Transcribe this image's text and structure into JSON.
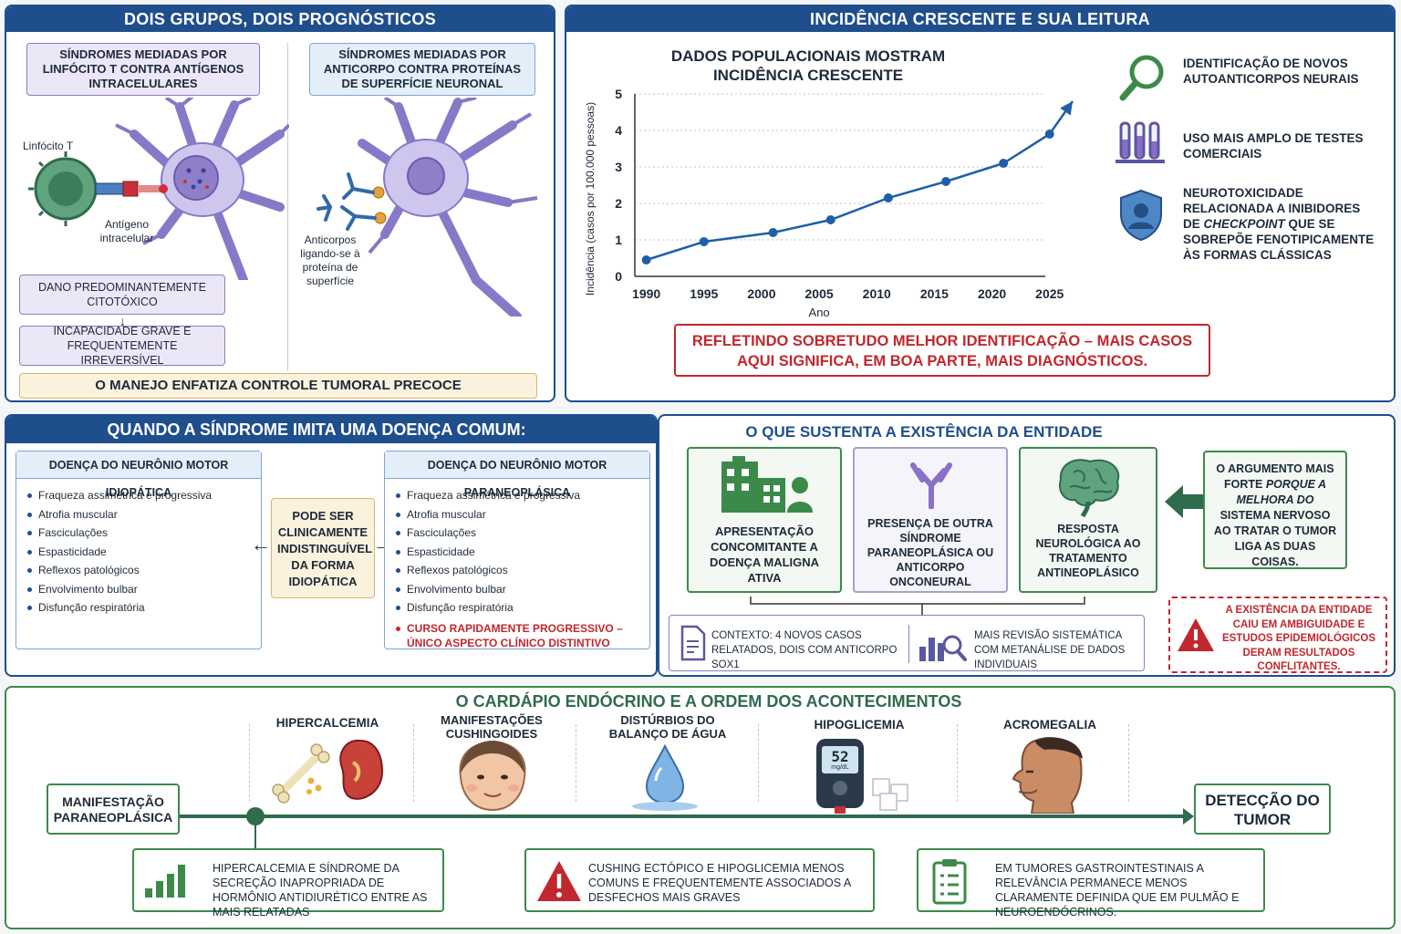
{
  "p1": {
    "title": "DOIS GRUPOS, DOIS PROGNÓSTICOS",
    "t_cell_box": "SÍNDROMES MEDIADAS POR LINFÓCITO T CONTRA ANTÍGENOS INTRACELULARES",
    "antibody_box": "SÍNDROMES MEDIADAS POR ANTICORPO CONTRA PROTEÍNAS DE SUPERFÍCIE NEURONAL",
    "lbl_tcell": "Linfócito T",
    "lbl_antigen": "Antígeno intracelular",
    "lbl_antibodies": "Anticorpos ligando-se à proteína de superfície",
    "damage": "DANO PREDOMINANTEMENTE CITOTÓXICO",
    "disability": "INCAPACIDADE GRAVE E FREQUENTEMENTE IRREVERSÍVEL",
    "management": "O MANEJO ENFATIZA CONTROLE TUMORAL PRECOCE"
  },
  "p2": {
    "title": "INCIDÊNCIA CRESCENTE E SUA LEITURA",
    "reason1": "IDENTIFICAÇÃO DE NOVOS AUTOANTICORPOS NEURAIS",
    "reason2": "USO MAIS AMPLO DE TESTES COMERCIAIS",
    "reason3_a": "NEUROTOXICIDADE RELACIONADA A INIBIDORES DE ",
    "reason3_em": "CHECKPOINT",
    "reason3_b": " QUE SE SOBREPÕE FENOTIPICAMENTE ÀS FORMAS CLÁSSICAS",
    "note": "REFLETINDO SOBRETUDO MELHOR IDENTIFICAÇÃO – MAIS CASOS AQUI SIGNIFICA, EM BOA PARTE, MAIS DIAGNÓSTICOS."
  },
  "chart_data": {
    "type": "line",
    "title": "DADOS POPULACIONAIS MOSTRAM INCIDÊNCIA CRESCENTE",
    "xlabel": "Ano",
    "ylabel": "Incidência (casos por 100.000 pessoas)",
    "x_ticks": [
      1990,
      1995,
      2000,
      2005,
      2010,
      2015,
      2020,
      2025
    ],
    "y_ticks": [
      0,
      1,
      2,
      3,
      4,
      5
    ],
    "xlim": [
      1989,
      2027
    ],
    "ylim": [
      0,
      5
    ],
    "series": [
      {
        "x": [
          1990,
          1995,
          2001,
          2006,
          2011,
          2016,
          2021,
          2025
        ],
        "y": [
          0.45,
          0.95,
          1.2,
          1.55,
          2.15,
          2.6,
          3.1,
          3.9
        ]
      }
    ],
    "arrow_to": {
      "x": 2027,
      "y": 4.8
    },
    "color": "#1f5ea8",
    "grid": "horizontal dotted"
  },
  "p3": {
    "title": "QUANDO A SÍNDROME IMITA UMA DOENÇA COMUM:",
    "left_header": "DOENÇA DO NEURÔNIO MOTOR IDIOPÁTICA",
    "right_header": "DOENÇA DO NEURÔNIO MOTOR PARANEOPLÁSICA",
    "symptoms": [
      "Fraqueza assimétrica e progressiva",
      "Atrofia muscular",
      "Fasciculações",
      "Espasticidade",
      "Reflexos patológicos",
      "Envolvimento bulbar",
      "Disfunção respiratória"
    ],
    "distinct": "CURSO RAPIDAMENTE PROGRESSIVO – ÚNICO ASPECTO CLÍNICO DISTINTIVO",
    "middle": "PODE SER CLINICAMENTE INDISTINGUÍVEL DA FORMA IDIOPÁTICA"
  },
  "p4": {
    "title": "O QUE SUSTENTA A EXISTÊNCIA DA ENTIDADE",
    "e1": "APRESENTAÇÃO CONCOMITANTE A DOENÇA MALIGNA ATIVA",
    "e2": "PRESENÇA DE OUTRA SÍNDROME PARANEOPLÁSICA OU ANTICORPO ONCONEURAL",
    "e3": "RESPOSTA NEUROLÓGICA AO TRATAMENTO ANTINEOPLÁSICO",
    "arg_a": "O ARGUMENTO MAIS FORTE ",
    "arg_em1": "PORQUE A MELHORA DO",
    "arg_b": " SISTEMA NERVOSO AO TRATAR O TUMOR LIGA AS DUAS COISAS.",
    "context": "CONTEXTO: 4 NOVOS CASOS RELATADOS, DOIS COM ANTICORPO SOX1",
    "review": "MAIS REVISÃO SISTEMÁTICA COM METANÁLISE DE DADOS INDIVIDUAIS",
    "warning": "A EXISTÊNCIA DA ENTIDADE CAIU EM AMBIGUIDADE E ESTUDOS EPIDEMIOLÓGICOS DERAM RESULTADOS CONFLITANTES."
  },
  "p5": {
    "title": "O CARDÁPIO ENDÓCRINO E A ORDEM DOS ACONTECIMENTOS",
    "start": "MANIFESTAÇÃO PARANEOPLÁSICA",
    "end": "DETECÇÃO DO TUMOR",
    "items": [
      "HIPERCALCEMIA",
      "MANIFESTAÇÕES CUSHINGOIDES",
      "DISTÚRBIOS DO BALANÇO DE ÁGUA",
      "HIPOGLICEMIA",
      "ACROMEGALIA"
    ],
    "glucose": "52",
    "glucose_unit": "mg/dL",
    "n1": "HIPERCALCEMIA E SÍNDROME DA SECREÇÃO INAPROPRIADA DE HORMÔNIO ANTIDIURÉTICO ENTRE AS MAIS RELATADAS",
    "n2": "CUSHING ECTÓPICO E HIPOGLICEMIA MENOS COMUNS E FREQUENTEMENTE ASSOCIADOS A DESFECHOS MAIS GRAVES",
    "n3": "EM TUMORES GASTROINTESTINAIS A RELEVÂNCIA PERMANECE MENOS CLARAMENTE DEFINIDA QUE EM PULMÃO E NEUROENDÓCRINOS."
  }
}
